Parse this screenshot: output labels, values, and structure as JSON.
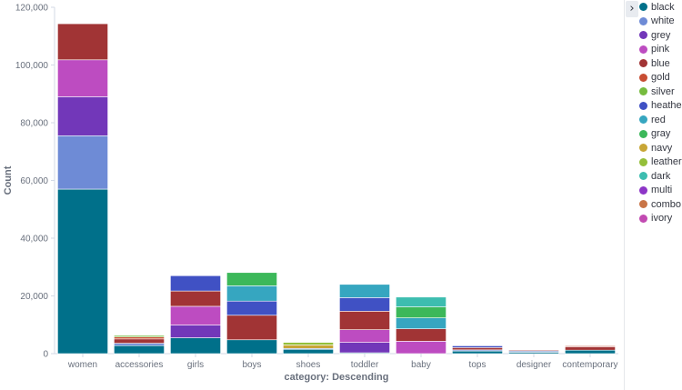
{
  "chart_data": {
    "type": "bar",
    "stacked": true,
    "xlabel": "category: Descending",
    "ylabel": "Count",
    "ylim": [
      0,
      120000
    ],
    "yticks": [
      0,
      20000,
      40000,
      60000,
      80000,
      100000,
      120000
    ],
    "ytick_labels": [
      "0",
      "20,000",
      "40,000",
      "60,000",
      "80,000",
      "100,000",
      "120,000"
    ],
    "grid": false,
    "legend_position": "right",
    "categories": [
      "women",
      "accessories",
      "girls",
      "boys",
      "shoes",
      "toddler",
      "baby",
      "tops",
      "designer",
      "contemporary"
    ],
    "series": [
      {
        "name": "black",
        "color": "#00708a",
        "values": [
          57000,
          2800,
          5500,
          4800,
          1500,
          300,
          0,
          900,
          500,
          1200
        ]
      },
      {
        "name": "white",
        "color": "#6e8bd6",
        "values": [
          18500,
          800,
          0,
          0,
          300,
          0,
          0,
          400,
          400,
          0
        ]
      },
      {
        "name": "grey",
        "color": "#7237b9",
        "values": [
          13500,
          0,
          4400,
          0,
          0,
          3600,
          0,
          0,
          0,
          0
        ]
      },
      {
        "name": "pink",
        "color": "#bd4cc1",
        "values": [
          12800,
          0,
          6500,
          0,
          0,
          4400,
          4300,
          0,
          0,
          0
        ]
      },
      {
        "name": "blue",
        "color": "#a13435",
        "values": [
          12500,
          1500,
          5300,
          8500,
          0,
          6400,
          4300,
          800,
          300,
          1200
        ]
      },
      {
        "name": "gold",
        "color": "#c84d33",
        "values": [
          0,
          700,
          0,
          0,
          0,
          0,
          0,
          0,
          0,
          300
        ]
      },
      {
        "name": "silver",
        "color": "#76bb3e",
        "values": [
          0,
          500,
          0,
          0,
          0,
          0,
          0,
          0,
          0,
          0
        ]
      },
      {
        "name": "heather",
        "color": "#4051c4",
        "values": [
          0,
          0,
          5300,
          4900,
          0,
          4700,
          0,
          600,
          0,
          0
        ]
      },
      {
        "name": "red",
        "color": "#36a6c0",
        "values": [
          0,
          0,
          0,
          5300,
          0,
          4600,
          3800,
          0,
          0,
          0
        ]
      },
      {
        "name": "gray",
        "color": "#3cb85a",
        "values": [
          0,
          0,
          0,
          4600,
          0,
          0,
          3800,
          0,
          0,
          0
        ]
      },
      {
        "name": "navy",
        "color": "#c8a636",
        "values": [
          0,
          0,
          0,
          0,
          1200,
          0,
          0,
          0,
          0,
          0
        ]
      },
      {
        "name": "leather",
        "color": "#94bf3a",
        "values": [
          0,
          0,
          0,
          0,
          900,
          0,
          0,
          0,
          0,
          0
        ]
      },
      {
        "name": "dark",
        "color": "#3dbdb0",
        "values": [
          0,
          0,
          0,
          0,
          0,
          0,
          3400,
          0,
          0,
          0
        ]
      },
      {
        "name": "multi",
        "color": "#8d35c7",
        "values": [
          0,
          0,
          0,
          0,
          0,
          0,
          0,
          0,
          0,
          0
        ]
      },
      {
        "name": "combo",
        "color": "#c97547",
        "values": [
          0,
          0,
          0,
          0,
          0,
          0,
          0,
          0,
          0,
          0
        ]
      },
      {
        "name": "ivory",
        "color": "#c24ab2",
        "values": [
          0,
          0,
          0,
          0,
          0,
          0,
          0,
          0,
          0,
          0
        ]
      }
    ]
  },
  "legend": {
    "toggle_glyph": "›"
  }
}
